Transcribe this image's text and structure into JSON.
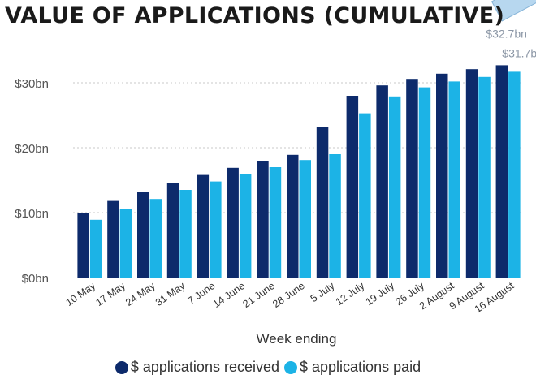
{
  "chart_data": {
    "type": "bar",
    "title": "VALUE OF APPLICATIONS (CUMULATIVE)",
    "xlabel": "Week ending",
    "ylabel": "",
    "categories": [
      "10 May",
      "17 May",
      "24 May",
      "31 May",
      "7 June",
      "14 June",
      "21 June",
      "28 June",
      "5 July",
      "12 July",
      "19 July",
      "26 July",
      "2 August",
      "9 August",
      "16 August"
    ],
    "series": [
      {
        "name": "$ applications received",
        "color": "#0d2a6b",
        "values": [
          10.0,
          11.8,
          13.2,
          14.5,
          15.8,
          16.9,
          18.0,
          18.9,
          23.2,
          28.0,
          29.6,
          30.6,
          31.4,
          32.1,
          32.7
        ]
      },
      {
        "name": "$ applications paid",
        "color": "#1cb3e6",
        "values": [
          8.9,
          10.5,
          12.1,
          13.5,
          14.8,
          15.9,
          17.0,
          18.1,
          19.0,
          25.3,
          27.9,
          29.3,
          30.2,
          30.9,
          31.7
        ]
      }
    ],
    "ylim": [
      0,
      33
    ],
    "yticks": [
      0,
      10,
      20,
      30
    ],
    "ytick_labels": [
      "$0bn",
      "$10bn",
      "$20bn",
      "$30bn"
    ],
    "data_labels": [
      "$32.7bn",
      "$31.7bn"
    ],
    "grid": true,
    "legend_position": "bottom"
  }
}
